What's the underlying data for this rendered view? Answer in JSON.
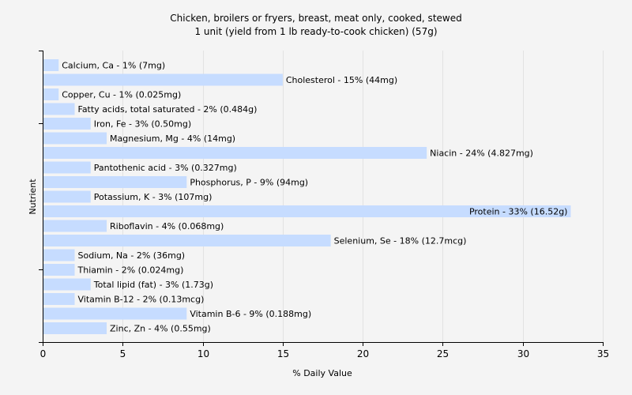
{
  "chart_data": {
    "type": "bar",
    "orientation": "horizontal",
    "title": "Chicken, broilers or fryers, breast, meat only, cooked, stewed",
    "subtitle": "1 unit (yield from 1 lb ready-to-cook chicken) (57g)",
    "xlabel": "% Daily Value",
    "ylabel": "Nutrient",
    "xlim": [
      0,
      35
    ],
    "xticks": [
      0,
      5,
      10,
      15,
      20,
      25,
      30,
      35
    ],
    "grid": true,
    "categories": [
      "Calcium, Ca",
      "Cholesterol",
      "Copper, Cu",
      "Fatty acids, total saturated",
      "Iron, Fe",
      "Magnesium, Mg",
      "Niacin",
      "Pantothenic acid",
      "Phosphorus, P",
      "Potassium, K",
      "Protein",
      "Riboflavin",
      "Selenium, Se",
      "Sodium, Na",
      "Thiamin",
      "Total lipid (fat)",
      "Vitamin B-12",
      "Vitamin B-6",
      "Zinc, Zn"
    ],
    "values": [
      1,
      15,
      1,
      2,
      3,
      4,
      24,
      3,
      9,
      3,
      33,
      4,
      18,
      2,
      2,
      3,
      2,
      9,
      4
    ],
    "labels": [
      "Calcium, Ca - 1% (7mg)",
      "Cholesterol - 15% (44mg)",
      "Copper, Cu - 1% (0.025mg)",
      "Fatty acids, total saturated - 2% (0.484g)",
      "Iron, Fe - 3% (0.50mg)",
      "Magnesium, Mg - 4% (14mg)",
      "Niacin - 24% (4.827mg)",
      "Pantothenic acid - 3% (0.327mg)",
      "Phosphorus, P - 9% (94mg)",
      "Potassium, K - 3% (107mg)",
      "Protein - 33% (16.52g)",
      "Riboflavin - 4% (0.068mg)",
      "Selenium, Se - 18% (12.7mcg)",
      "Sodium, Na - 2% (36mg)",
      "Thiamin - 2% (0.024mg)",
      "Total lipid (fat) - 3% (1.73g)",
      "Vitamin B-12 - 2% (0.13mcg)",
      "Vitamin B-6 - 9% (0.188mg)",
      "Zinc, Zn - 4% (0.55mg)"
    ],
    "bar_color": "#c6dcff",
    "background_color": "#f4f4f4",
    "grid_color": "#e2e2e2"
  }
}
